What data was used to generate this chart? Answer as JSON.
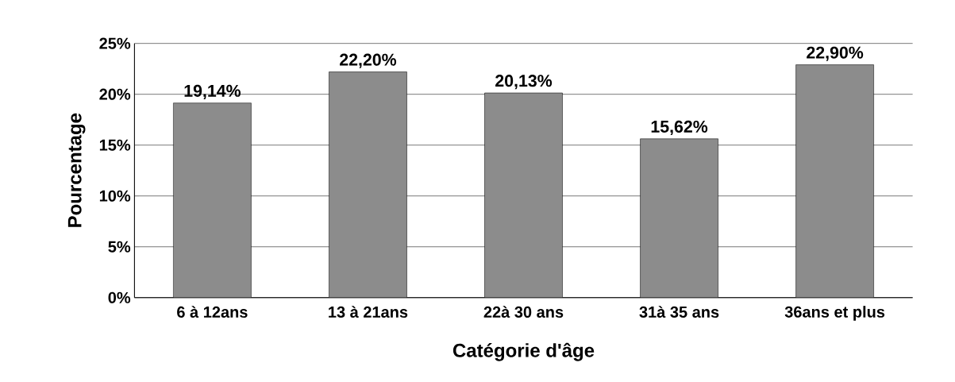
{
  "chart_data": {
    "type": "bar",
    "xlabel": "Catégorie d'âge",
    "ylabel": "Pourcentage",
    "categories": [
      "6 à 12ans",
      "13 à 21ans",
      "22à 30 ans",
      "31à 35 ans",
      "36ans et plus"
    ],
    "values": [
      19.14,
      22.2,
      20.13,
      15.62,
      22.9
    ],
    "value_labels": [
      "19,14%",
      "22,20%",
      "20,13%",
      "15,62%",
      "22,90%"
    ],
    "color": "#8c8c8c",
    "ylim": [
      0,
      25
    ],
    "yticks": [
      {
        "value": 0,
        "label": "0%"
      },
      {
        "value": 5,
        "label": "5%"
      },
      {
        "value": 10,
        "label": "10%"
      },
      {
        "value": 15,
        "label": "15%"
      },
      {
        "value": 20,
        "label": "20%"
      },
      {
        "value": 25,
        "label": "25%"
      }
    ],
    "grid": "y"
  }
}
